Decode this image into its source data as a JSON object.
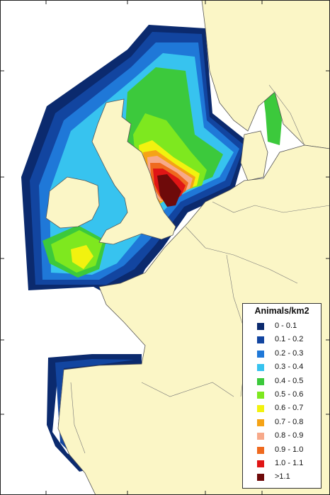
{
  "legend": {
    "title": "Animals/km2",
    "classes": [
      {
        "label": "0 - 0.1",
        "color": "#0b2a6e"
      },
      {
        "label": "0.1 - 0.2",
        "color": "#1245a0"
      },
      {
        "label": "0.2 - 0.3",
        "color": "#1f78d8"
      },
      {
        "label": "0.3 - 0.4",
        "color": "#37c3ef"
      },
      {
        "label": "0.4 - 0.5",
        "color": "#3cc93c"
      },
      {
        "label": "0.5 - 0.6",
        "color": "#7ee81f"
      },
      {
        "label": "0.6 - 0.7",
        "color": "#f2f20f"
      },
      {
        "label": "0.7 - 0.8",
        "color": "#f5a316"
      },
      {
        "label": "0.8 - 0.9",
        "color": "#f7a98a"
      },
      {
        "label": "0.9 - 1.0",
        "color": "#ef6a1f"
      },
      {
        "label": "1.0 - 1.1",
        "color": "#e01515"
      },
      {
        "label": ">1.1",
        "color": "#6e0a0a"
      }
    ]
  },
  "map": {
    "land_color": "#fbf6c6",
    "sea_color": "#ffffff",
    "border_color": "#555555"
  }
}
